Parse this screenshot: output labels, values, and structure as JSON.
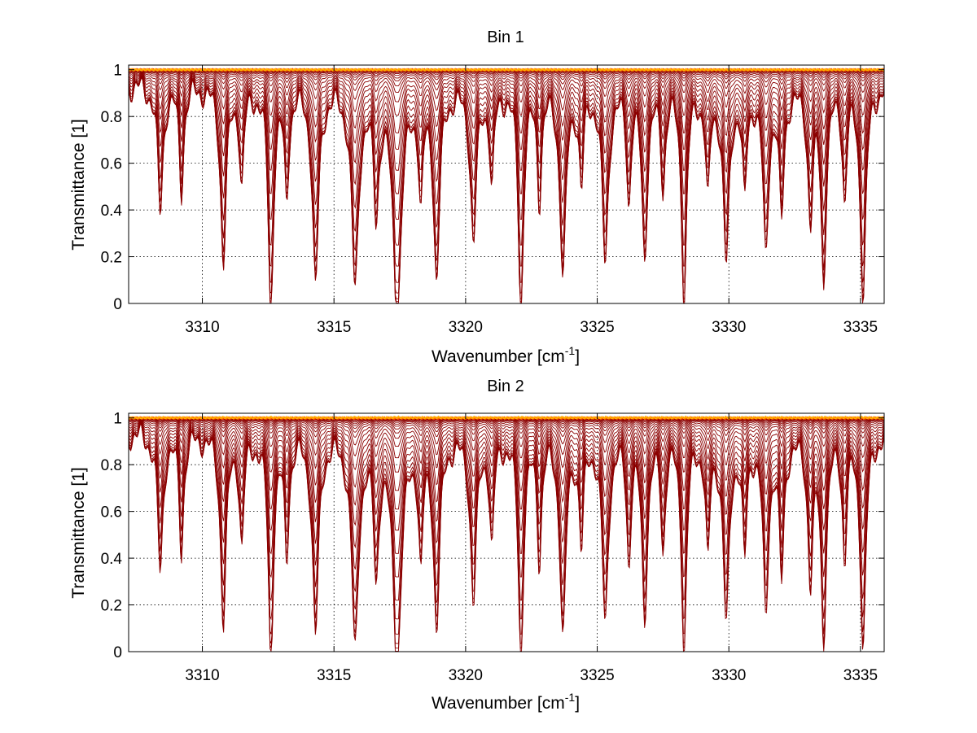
{
  "figure": {
    "background": "#ffffff",
    "line_colors": [
      "#8b0000",
      "#a50000",
      "#c00000",
      "#d81000",
      "#ee3000",
      "#ff5a00",
      "#ff8c00",
      "#ffb000"
    ]
  },
  "chart_data": [
    {
      "type": "line",
      "title": "Bin 1",
      "xlabel": "Wavenumber [cm",
      "xlabel_sup": "-1",
      "xlabel_end": "]",
      "ylabel": "Transmittance [1]",
      "xlim": [
        3307.2,
        3335.9
      ],
      "ylim": [
        0,
        1.02
      ],
      "xticks": [
        3310,
        3315,
        3320,
        3325,
        3330,
        3335
      ],
      "yticks": [
        0,
        0.2,
        0.4,
        0.6,
        0.8,
        1
      ],
      "ytick_labels": [
        "0",
        "0.2",
        "0.4",
        "0.6",
        "0.8",
        "1"
      ],
      "grid": "dotted",
      "series_count": 30,
      "series_min_level": [
        0.0,
        0.008,
        0.02,
        0.045,
        0.09,
        0.16,
        0.25,
        0.36,
        0.47,
        0.57,
        0.66,
        0.73,
        0.79,
        0.84,
        0.88,
        0.91,
        0.935,
        0.95,
        0.965,
        0.975,
        0.982,
        0.987,
        0.991,
        0.994,
        0.996,
        0.997,
        0.998,
        0.999,
        0.999,
        1.0
      ],
      "absorption_lines": [
        {
          "x": 3308.4,
          "depth": 0.55,
          "width": 0.12
        },
        {
          "x": 3309.2,
          "depth": 0.45,
          "width": 0.1
        },
        {
          "x": 3310.8,
          "depth": 0.75,
          "width": 0.13
        },
        {
          "x": 3311.5,
          "depth": 0.4,
          "width": 0.1
        },
        {
          "x": 3312.6,
          "depth": 0.95,
          "width": 0.12
        },
        {
          "x": 3313.2,
          "depth": 0.45,
          "width": 0.1
        },
        {
          "x": 3314.3,
          "depth": 0.85,
          "width": 0.14
        },
        {
          "x": 3315.8,
          "depth": 0.85,
          "width": 0.16
        },
        {
          "x": 3316.6,
          "depth": 0.5,
          "width": 0.12
        },
        {
          "x": 3317.4,
          "depth": 0.95,
          "width": 0.2
        },
        {
          "x": 3318.3,
          "depth": 0.45,
          "width": 0.1
        },
        {
          "x": 3318.9,
          "depth": 0.8,
          "width": 0.14
        },
        {
          "x": 3320.3,
          "depth": 0.65,
          "width": 0.14
        },
        {
          "x": 3321.0,
          "depth": 0.4,
          "width": 0.1
        },
        {
          "x": 3322.1,
          "depth": 0.95,
          "width": 0.12
        },
        {
          "x": 3322.8,
          "depth": 0.45,
          "width": 0.1
        },
        {
          "x": 3323.7,
          "depth": 0.8,
          "width": 0.14
        },
        {
          "x": 3324.4,
          "depth": 0.4,
          "width": 0.1
        },
        {
          "x": 3325.3,
          "depth": 0.75,
          "width": 0.14
        },
        {
          "x": 3326.2,
          "depth": 0.45,
          "width": 0.1
        },
        {
          "x": 3326.8,
          "depth": 0.7,
          "width": 0.13
        },
        {
          "x": 3327.5,
          "depth": 0.4,
          "width": 0.1
        },
        {
          "x": 3328.3,
          "depth": 0.9,
          "width": 0.12
        },
        {
          "x": 3329.2,
          "depth": 0.45,
          "width": 0.1
        },
        {
          "x": 3329.9,
          "depth": 0.75,
          "width": 0.14
        },
        {
          "x": 3330.6,
          "depth": 0.45,
          "width": 0.1
        },
        {
          "x": 3331.4,
          "depth": 0.7,
          "width": 0.13
        },
        {
          "x": 3332.0,
          "depth": 0.55,
          "width": 0.11
        },
        {
          "x": 3333.1,
          "depth": 0.55,
          "width": 0.12
        },
        {
          "x": 3333.6,
          "depth": 0.8,
          "width": 0.12
        },
        {
          "x": 3334.4,
          "depth": 0.45,
          "width": 0.1
        },
        {
          "x": 3335.1,
          "depth": 0.9,
          "width": 0.13
        }
      ]
    },
    {
      "type": "line",
      "title": "Bin 2",
      "xlabel": "Wavenumber [cm",
      "xlabel_sup": "-1",
      "xlabel_end": "]",
      "ylabel": "Transmittance [1]",
      "xlim": [
        3307.2,
        3335.9
      ],
      "ylim": [
        0,
        1.02
      ],
      "xticks": [
        3310,
        3315,
        3320,
        3325,
        3330,
        3335
      ],
      "yticks": [
        0,
        0.2,
        0.4,
        0.6,
        0.8,
        1
      ],
      "ytick_labels": [
        "0",
        "0.2",
        "0.4",
        "0.6",
        "0.8",
        "1"
      ],
      "grid": "dotted",
      "series_count": 30,
      "series_min_level": [
        0.0,
        0.015,
        0.035,
        0.075,
        0.14,
        0.22,
        0.32,
        0.42,
        0.52,
        0.61,
        0.69,
        0.76,
        0.81,
        0.855,
        0.89,
        0.915,
        0.935,
        0.95,
        0.962,
        0.972,
        0.98,
        0.986,
        0.99,
        0.993,
        0.995,
        0.997,
        0.998,
        0.999,
        1.0,
        1.005
      ],
      "absorption_lines": [
        {
          "x": 3308.4,
          "depth": 0.6,
          "width": 0.12
        },
        {
          "x": 3309.2,
          "depth": 0.5,
          "width": 0.1
        },
        {
          "x": 3310.8,
          "depth": 0.8,
          "width": 0.13
        },
        {
          "x": 3311.5,
          "depth": 0.45,
          "width": 0.1
        },
        {
          "x": 3312.6,
          "depth": 0.95,
          "width": 0.12
        },
        {
          "x": 3313.2,
          "depth": 0.5,
          "width": 0.1
        },
        {
          "x": 3314.3,
          "depth": 0.85,
          "width": 0.14
        },
        {
          "x": 3315.8,
          "depth": 0.9,
          "width": 0.16
        },
        {
          "x": 3316.6,
          "depth": 0.55,
          "width": 0.12
        },
        {
          "x": 3317.4,
          "depth": 0.95,
          "width": 0.2
        },
        {
          "x": 3318.3,
          "depth": 0.5,
          "width": 0.1
        },
        {
          "x": 3318.9,
          "depth": 0.8,
          "width": 0.14
        },
        {
          "x": 3320.3,
          "depth": 0.7,
          "width": 0.14
        },
        {
          "x": 3321.0,
          "depth": 0.45,
          "width": 0.1
        },
        {
          "x": 3322.1,
          "depth": 0.95,
          "width": 0.12
        },
        {
          "x": 3322.8,
          "depth": 0.5,
          "width": 0.1
        },
        {
          "x": 3323.7,
          "depth": 0.85,
          "width": 0.14
        },
        {
          "x": 3324.4,
          "depth": 0.45,
          "width": 0.1
        },
        {
          "x": 3325.3,
          "depth": 0.8,
          "width": 0.14
        },
        {
          "x": 3326.2,
          "depth": 0.5,
          "width": 0.1
        },
        {
          "x": 3326.8,
          "depth": 0.75,
          "width": 0.13
        },
        {
          "x": 3327.5,
          "depth": 0.45,
          "width": 0.1
        },
        {
          "x": 3328.3,
          "depth": 0.9,
          "width": 0.12
        },
        {
          "x": 3329.2,
          "depth": 0.5,
          "width": 0.1
        },
        {
          "x": 3329.9,
          "depth": 0.8,
          "width": 0.14
        },
        {
          "x": 3330.6,
          "depth": 0.5,
          "width": 0.1
        },
        {
          "x": 3331.4,
          "depth": 0.75,
          "width": 0.13
        },
        {
          "x": 3332.0,
          "depth": 0.6,
          "width": 0.11
        },
        {
          "x": 3333.1,
          "depth": 0.6,
          "width": 0.12
        },
        {
          "x": 3333.6,
          "depth": 0.85,
          "width": 0.12
        },
        {
          "x": 3334.4,
          "depth": 0.5,
          "width": 0.1
        },
        {
          "x": 3335.1,
          "depth": 0.9,
          "width": 0.13
        }
      ]
    }
  ]
}
